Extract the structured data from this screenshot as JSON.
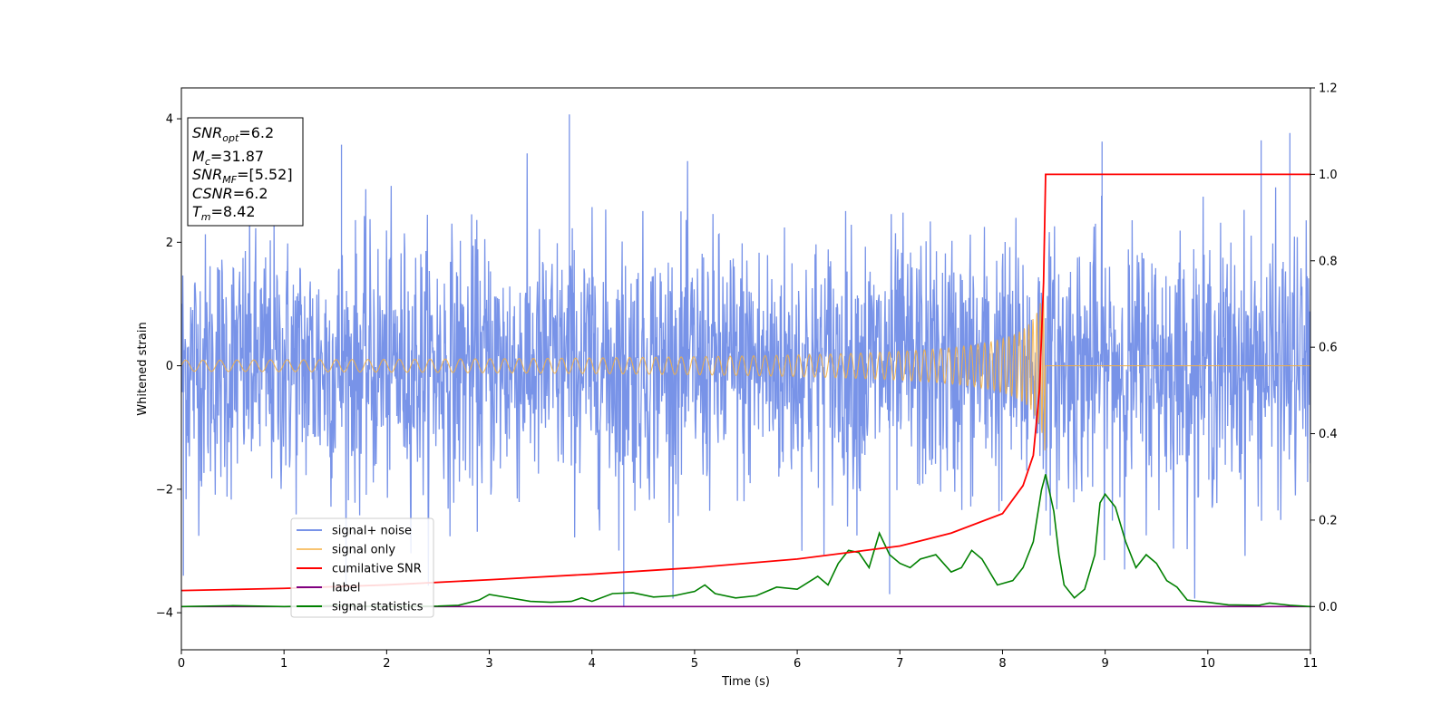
{
  "chart_data": {
    "type": "line",
    "title": "",
    "xlabel": "Time (s)",
    "ylabel": "Whitened strain",
    "y2label": "",
    "xlim": [
      0,
      11
    ],
    "ylim": [
      -4.6,
      4.5
    ],
    "y2lim": [
      -0.1,
      1.2
    ],
    "x_ticks": [
      "0",
      "1",
      "2",
      "3",
      "4",
      "5",
      "6",
      "7",
      "8",
      "9",
      "10",
      "11"
    ],
    "y_ticks": [
      {
        "v": -4,
        "label": "−4"
      },
      {
        "v": -2,
        "label": "−2"
      },
      {
        "v": 0,
        "label": "0"
      },
      {
        "v": 2,
        "label": "2"
      },
      {
        "v": 4,
        "label": "4"
      }
    ],
    "y2_ticks": [
      "0.0",
      "0.2",
      "0.4",
      "0.6",
      "0.8",
      "1.0",
      "1.2"
    ],
    "grid": false,
    "legend_position": "lower-left",
    "info_box": {
      "snr_opt": {
        "base": "SNR",
        "sub": "opt",
        "value": "=6.2"
      },
      "mc": {
        "base": "M",
        "sub": "c",
        "value": "=31.87"
      },
      "snr_mf": {
        "base": "SNR",
        "sub": "MF",
        "value": "=[5.52]"
      },
      "csnr": {
        "base": "CSNR",
        "sub": "",
        "value": "=6.2"
      },
      "tm": {
        "base": "T",
        "sub": "m",
        "value": "=8.42"
      }
    },
    "series": [
      {
        "name": "signal+ noise",
        "color": "#7893e8",
        "axis": "left",
        "kind": "noise",
        "amplitude_envelope": 2.6,
        "peak_max": 4.07,
        "peak_min": -3.9
      },
      {
        "name": "signal only",
        "color": "#f5b041",
        "axis": "left",
        "kind": "chirp",
        "merger_time": 8.42,
        "peak_amplitude": 1.5
      },
      {
        "name": "cumilative SNR",
        "color": "#ff0000",
        "axis": "right",
        "points": [
          [
            0,
            0.037
          ],
          [
            1,
            0.042
          ],
          [
            2,
            0.05
          ],
          [
            3,
            0.062
          ],
          [
            4,
            0.075
          ],
          [
            5,
            0.09
          ],
          [
            6,
            0.11
          ],
          [
            7,
            0.14
          ],
          [
            7.5,
            0.17
          ],
          [
            8.0,
            0.215
          ],
          [
            8.2,
            0.28
          ],
          [
            8.3,
            0.35
          ],
          [
            8.36,
            0.5
          ],
          [
            8.4,
            0.75
          ],
          [
            8.42,
            1.0
          ],
          [
            11,
            1.0
          ]
        ]
      },
      {
        "name": "label",
        "color": "#800080",
        "axis": "right",
        "points": [
          [
            0,
            0.0
          ],
          [
            11,
            0.0
          ]
        ]
      },
      {
        "name": "signal statistics",
        "color": "#008000",
        "axis": "right",
        "points": [
          [
            0,
            0.0
          ],
          [
            0.5,
            0.002
          ],
          [
            1.0,
            0.0
          ],
          [
            1.5,
            0.002
          ],
          [
            2.0,
            0.0
          ],
          [
            2.5,
            0.001
          ],
          [
            2.7,
            0.003
          ],
          [
            2.9,
            0.015
          ],
          [
            3.0,
            0.028
          ],
          [
            3.2,
            0.02
          ],
          [
            3.4,
            0.012
          ],
          [
            3.6,
            0.01
          ],
          [
            3.8,
            0.012
          ],
          [
            3.9,
            0.02
          ],
          [
            4.0,
            0.012
          ],
          [
            4.2,
            0.03
          ],
          [
            4.4,
            0.032
          ],
          [
            4.6,
            0.022
          ],
          [
            4.8,
            0.025
          ],
          [
            5.0,
            0.035
          ],
          [
            5.1,
            0.05
          ],
          [
            5.2,
            0.03
          ],
          [
            5.4,
            0.02
          ],
          [
            5.6,
            0.025
          ],
          [
            5.8,
            0.045
          ],
          [
            6.0,
            0.04
          ],
          [
            6.2,
            0.07
          ],
          [
            6.3,
            0.05
          ],
          [
            6.4,
            0.1
          ],
          [
            6.5,
            0.13
          ],
          [
            6.6,
            0.125
          ],
          [
            6.7,
            0.09
          ],
          [
            6.8,
            0.17
          ],
          [
            6.9,
            0.12
          ],
          [
            7.0,
            0.1
          ],
          [
            7.1,
            0.09
          ],
          [
            7.2,
            0.11
          ],
          [
            7.35,
            0.12
          ],
          [
            7.5,
            0.08
          ],
          [
            7.6,
            0.09
          ],
          [
            7.7,
            0.13
          ],
          [
            7.8,
            0.11
          ],
          [
            7.95,
            0.05
          ],
          [
            8.1,
            0.06
          ],
          [
            8.2,
            0.09
          ],
          [
            8.3,
            0.15
          ],
          [
            8.38,
            0.27
          ],
          [
            8.42,
            0.306
          ],
          [
            8.5,
            0.22
          ],
          [
            8.55,
            0.12
          ],
          [
            8.6,
            0.05
          ],
          [
            8.7,
            0.02
          ],
          [
            8.8,
            0.04
          ],
          [
            8.9,
            0.12
          ],
          [
            8.95,
            0.24
          ],
          [
            9.0,
            0.26
          ],
          [
            9.1,
            0.23
          ],
          [
            9.2,
            0.15
          ],
          [
            9.3,
            0.09
          ],
          [
            9.4,
            0.12
          ],
          [
            9.5,
            0.1
          ],
          [
            9.6,
            0.06
          ],
          [
            9.7,
            0.045
          ],
          [
            9.8,
            0.015
          ],
          [
            10.0,
            0.01
          ],
          [
            10.2,
            0.004
          ],
          [
            10.5,
            0.003
          ],
          [
            10.6,
            0.008
          ],
          [
            10.8,
            0.003
          ],
          [
            11,
            0.0
          ]
        ]
      }
    ]
  }
}
